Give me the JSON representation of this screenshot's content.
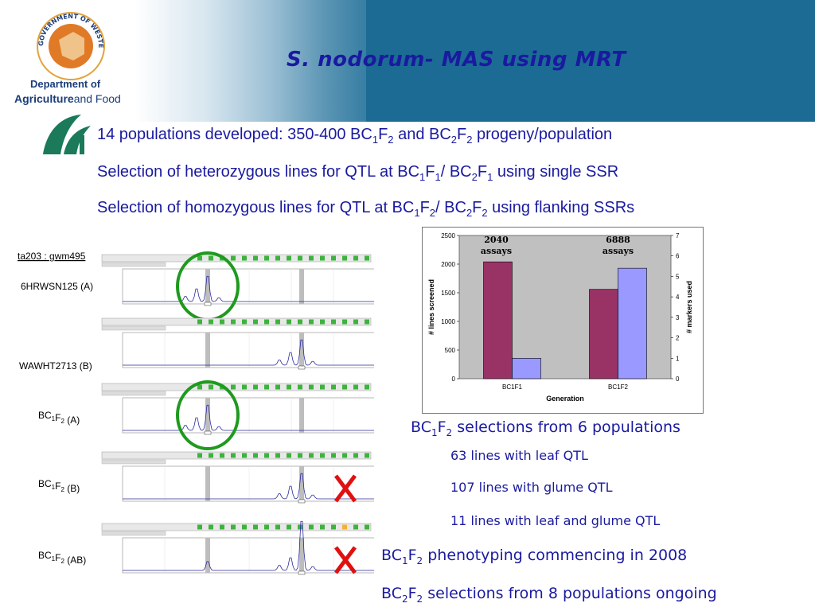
{
  "header": {
    "title": "S. nodorum- MAS using MRT",
    "logo_ring_text": "GOVERNMENT OF WESTERN AUSTRALIA",
    "dept_line1": "Department of",
    "dept_line2_bold": "Agriculture",
    "dept_line2_light": "and Food"
  },
  "bullets": [
    {
      "pre": "14 populations developed: 350-400 BC",
      "s1": "1",
      "m1": "F",
      "s2": "2",
      "m2": " and BC",
      "s3": "2",
      "m3": "F",
      "s4": "2",
      "post": " progeny/population"
    },
    {
      "pre": "Selection of heterozygous lines for QTL at BC",
      "s1": "1",
      "m1": "F",
      "s2": "1",
      "m2": "/ BC",
      "s3": "2",
      "m3": "F",
      "s4": "1",
      "post": " using single SSR"
    },
    {
      "pre": "Selection of homozygous lines for QTL at BC",
      "s1": "1",
      "m1": "F",
      "s2": "2",
      "m2": "/ BC",
      "s3": "2",
      "m3": "F",
      "s4": "2",
      "post": " using flanking SSRs"
    }
  ],
  "gels": {
    "marker": "ta203 : gwm495",
    "labels": [
      "6HRWSN125 (A)",
      "WAWHT2713 (B)",
      "(A)",
      "(B)",
      "(AB)"
    ],
    "bc_prefix": "BC",
    "bc_sub1": "1",
    "bc_f": "F",
    "bc_sub2": "2",
    "marks": [
      "circle",
      "none",
      "circle",
      "cross",
      "cross"
    ]
  },
  "chart_data": {
    "type": "bar",
    "categories": [
      "BC1F1",
      "BC1F2"
    ],
    "series": [
      {
        "name": "# lines screened",
        "axis": "left",
        "color": "#993366",
        "values": [
          2040,
          1560
        ]
      },
      {
        "name": "# markers used",
        "axis": "right",
        "color": "#9999ff",
        "values": [
          1,
          5.4
        ]
      }
    ],
    "annotations": [
      {
        "category": "BC1F1",
        "line1": "2040",
        "line2": "assays"
      },
      {
        "category": "BC1F2",
        "line1": "6888",
        "line2": "assays"
      }
    ],
    "xlabel": "Generation",
    "ylabel": "# lines screened",
    "y2label": "# markers used",
    "ylim": [
      0,
      2500
    ],
    "y2lim": [
      0,
      7
    ],
    "yticks": [
      "0",
      "500",
      "1000",
      "1500",
      "2000",
      "2500"
    ],
    "y2ticks": [
      "0",
      "1",
      "2",
      "3",
      "4",
      "5",
      "6",
      "7"
    ],
    "plot_bg": "#c0c0c0"
  },
  "results": {
    "r1_pre": "BC",
    "r1_s1": "1",
    "r1_m": "F",
    "r1_s2": "2",
    "r1_post": " selections from 6 populations",
    "r2": "63 lines with leaf QTL",
    "r3": "107 lines with glume QTL",
    "r4": "11 lines with leaf and glume QTL",
    "r5_pre": "BC",
    "r5_s1": "1",
    "r5_m": "F",
    "r5_s2": "2",
    "r5_post": " phenotyping commencing in 2008",
    "r6_pre": "BC",
    "r6_s1": "2",
    "r6_m": "F",
    "r6_s2": "2",
    "r6_post": " selections from 8 populations ongoing"
  },
  "colors": {
    "title": "#1a1aa0",
    "text": "#1a1aa0",
    "banner": "#1b6b94",
    "circle": "#1e9a1e",
    "cross": "#e01010"
  }
}
